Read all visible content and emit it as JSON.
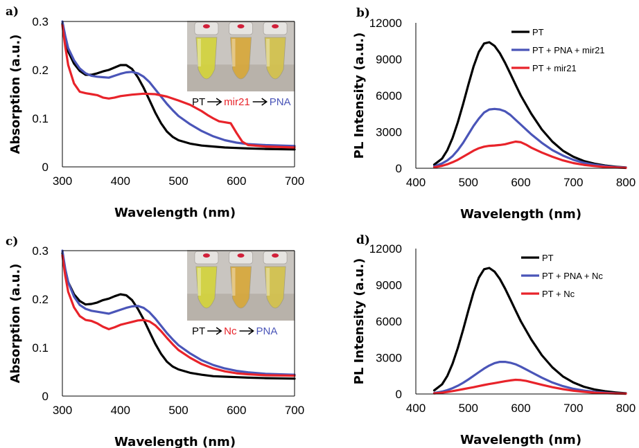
{
  "colors": {
    "PT": "#000000",
    "PNA": "#4a55b8",
    "red": "#e8232a"
  },
  "panels": [
    {
      "letter": "a)",
      "photo_label": {
        "PT": "PT",
        "target": "mir21",
        "PNA": "PNA"
      },
      "chart_data": {
        "type": "line",
        "xlabel": "Wavelength (nm)",
        "ylabel": "Absorption (a.u.)",
        "xlim": [
          300,
          700
        ],
        "ylim": [
          0,
          0.3
        ],
        "xticks": [
          "300",
          "400",
          "500",
          "600",
          "700"
        ],
        "yticks": [
          "0",
          "0.1",
          "0.2",
          "0.3"
        ],
        "grid": false,
        "series": [
          {
            "color_key": "PT",
            "x": [
              300,
              305,
              310,
              320,
              330,
              340,
              350,
              360,
              370,
              380,
              390,
              400,
              410,
              420,
              430,
              440,
              450,
              460,
              470,
              480,
              490,
              500,
              520,
              540,
              560,
              580,
              600,
              620,
              650,
              700
            ],
            "y": [
              0.295,
              0.262,
              0.238,
              0.213,
              0.198,
              0.19,
              0.19,
              0.193,
              0.197,
              0.2,
              0.205,
              0.21,
              0.21,
              0.202,
              0.185,
              0.163,
              0.138,
              0.112,
              0.09,
              0.073,
              0.062,
              0.055,
              0.048,
              0.044,
              0.042,
              0.04,
              0.039,
              0.038,
              0.037,
              0.036
            ]
          },
          {
            "color_key": "PNA",
            "x": [
              300,
              305,
              310,
              320,
              330,
              340,
              350,
              360,
              370,
              380,
              390,
              400,
              410,
              420,
              430,
              440,
              450,
              460,
              470,
              480,
              490,
              500,
              520,
              540,
              560,
              580,
              600,
              620,
              650,
              700
            ],
            "y": [
              0.3,
              0.27,
              0.245,
              0.22,
              0.203,
              0.193,
              0.188,
              0.186,
              0.185,
              0.184,
              0.188,
              0.192,
              0.195,
              0.196,
              0.193,
              0.186,
              0.175,
              0.16,
              0.145,
              0.13,
              0.117,
              0.105,
              0.088,
              0.074,
              0.063,
              0.055,
              0.05,
              0.047,
              0.045,
              0.043
            ]
          },
          {
            "color_key": "red",
            "x": [
              300,
              305,
              310,
              320,
              330,
              340,
              350,
              360,
              370,
              380,
              390,
              400,
              420,
              440,
              460,
              480,
              500,
              520,
              540,
              550,
              560,
              570,
              580,
              590,
              600,
              610,
              620,
              650,
              700
            ],
            "y": [
              0.292,
              0.248,
              0.21,
              0.172,
              0.155,
              0.152,
              0.15,
              0.148,
              0.143,
              0.141,
              0.143,
              0.146,
              0.149,
              0.151,
              0.15,
              0.145,
              0.137,
              0.128,
              0.115,
              0.107,
              0.1,
              0.094,
              0.092,
              0.09,
              0.07,
              0.052,
              0.045,
              0.042,
              0.04
            ]
          }
        ]
      }
    },
    {
      "letter": "b)",
      "legend": [
        "PT",
        "PT + PNA + mir21",
        "PT + mir21"
      ],
      "chart_data": {
        "type": "line",
        "xlabel": "Wavelength (nm)",
        "ylabel": "PL Intensity (a.u.)",
        "xlim": [
          400,
          800
        ],
        "ylim": [
          0,
          12000
        ],
        "xticks": [
          "400",
          "500",
          "600",
          "700",
          "800"
        ],
        "yticks": [
          "0",
          "3000",
          "6000",
          "9000",
          "12000"
        ],
        "grid": false,
        "legend_position": "top-right",
        "series": [
          {
            "name": "PT",
            "color_key": "PT",
            "x": [
              435,
              450,
              460,
              470,
              480,
              490,
              500,
              510,
              520,
              530,
              540,
              550,
              560,
              570,
              580,
              590,
              600,
              620,
              640,
              660,
              680,
              700,
              720,
              740,
              760,
              780,
              800
            ],
            "y": [
              300,
              800,
              1500,
              2500,
              3800,
              5300,
              6900,
              8400,
              9600,
              10300,
              10400,
              10100,
              9500,
              8700,
              7800,
              6900,
              6000,
              4500,
              3200,
              2200,
              1450,
              950,
              600,
              380,
              230,
              130,
              60
            ]
          },
          {
            "name": "PT + PNA + mir21",
            "color_key": "PNA",
            "x": [
              435,
              450,
              460,
              470,
              480,
              490,
              500,
              510,
              520,
              530,
              540,
              550,
              560,
              570,
              580,
              590,
              600,
              620,
              640,
              660,
              680,
              700,
              720,
              740,
              760,
              780,
              800
            ],
            "y": [
              150,
              400,
              650,
              1000,
              1500,
              2100,
              2800,
              3500,
              4100,
              4600,
              4850,
              4900,
              4850,
              4700,
              4400,
              4000,
              3600,
              2800,
              2100,
              1500,
              1050,
              700,
              450,
              290,
              180,
              100,
              50
            ]
          },
          {
            "name": "PT + mir21",
            "color_key": "red",
            "x": [
              435,
              450,
              460,
              470,
              480,
              490,
              500,
              510,
              520,
              530,
              540,
              550,
              560,
              570,
              580,
              590,
              600,
              610,
              620,
              640,
              660,
              680,
              700,
              720,
              740,
              760,
              780,
              800
            ],
            "y": [
              80,
              200,
              330,
              500,
              700,
              950,
              1200,
              1450,
              1650,
              1780,
              1850,
              1880,
              1920,
              1980,
              2100,
              2200,
              2150,
              1950,
              1700,
              1300,
              950,
              650,
              430,
              280,
              180,
              110,
              60,
              30
            ]
          }
        ]
      }
    },
    {
      "letter": "c)",
      "photo_label": {
        "PT": "PT",
        "target": "Nc",
        "PNA": "PNA"
      },
      "chart_data": {
        "type": "line",
        "xlabel": "Wavelength (nm)",
        "ylabel": "Absorption (a.u.)",
        "xlim": [
          300,
          700
        ],
        "ylim": [
          0,
          0.3
        ],
        "xticks": [
          "300",
          "400",
          "500",
          "600",
          "700"
        ],
        "yticks": [
          "0",
          "0.1",
          "0.2",
          "0.3"
        ],
        "grid": false,
        "series": [
          {
            "color_key": "PT",
            "x": [
              300,
              305,
              310,
              320,
              330,
              340,
              350,
              360,
              370,
              380,
              390,
              400,
              410,
              420,
              430,
              440,
              450,
              460,
              470,
              480,
              490,
              500,
              520,
              540,
              560,
              580,
              600,
              620,
              650,
              700
            ],
            "y": [
              0.295,
              0.26,
              0.235,
              0.21,
              0.196,
              0.189,
              0.19,
              0.193,
              0.198,
              0.201,
              0.206,
              0.21,
              0.208,
              0.198,
              0.18,
              0.158,
              0.133,
              0.108,
              0.087,
              0.071,
              0.061,
              0.055,
              0.048,
              0.044,
              0.041,
              0.04,
              0.039,
              0.038,
              0.037,
              0.036
            ]
          },
          {
            "color_key": "PNA",
            "x": [
              300,
              305,
              310,
              320,
              330,
              340,
              350,
              360,
              370,
              380,
              390,
              400,
              410,
              420,
              430,
              440,
              450,
              460,
              470,
              480,
              490,
              500,
              520,
              540,
              560,
              580,
              600,
              620,
              650,
              700
            ],
            "y": [
              0.3,
              0.262,
              0.235,
              0.205,
              0.188,
              0.18,
              0.176,
              0.174,
              0.172,
              0.17,
              0.174,
              0.178,
              0.182,
              0.185,
              0.186,
              0.182,
              0.173,
              0.16,
              0.145,
              0.13,
              0.117,
              0.105,
              0.088,
              0.074,
              0.064,
              0.057,
              0.052,
              0.049,
              0.046,
              0.044
            ]
          },
          {
            "color_key": "red",
            "x": [
              300,
              305,
              310,
              320,
              330,
              340,
              350,
              360,
              370,
              380,
              390,
              400,
              410,
              420,
              430,
              440,
              450,
              460,
              470,
              480,
              490,
              500,
              520,
              540,
              560,
              580,
              600,
              620,
              650,
              700
            ],
            "y": [
              0.29,
              0.248,
              0.215,
              0.183,
              0.165,
              0.157,
              0.155,
              0.15,
              0.143,
              0.138,
              0.142,
              0.147,
              0.15,
              0.153,
              0.156,
              0.157,
              0.154,
              0.146,
              0.134,
              0.12,
              0.107,
              0.095,
              0.079,
              0.066,
              0.057,
              0.051,
              0.047,
              0.045,
              0.043,
              0.042
            ]
          }
        ]
      }
    },
    {
      "letter": "d)",
      "legend": [
        "PT",
        "PT + PNA + Nc",
        "PT + Nc"
      ],
      "chart_data": {
        "type": "line",
        "xlabel": "Wavelength (nm)",
        "ylabel": "PL Intensity (a.u.)",
        "xlim": [
          400,
          800
        ],
        "ylim": [
          0,
          12000
        ],
        "xticks": [
          "400",
          "500",
          "600",
          "700",
          "800"
        ],
        "yticks": [
          "0",
          "3000",
          "6000",
          "9000",
          "12000"
        ],
        "grid": false,
        "legend_position": "top-right",
        "series": [
          {
            "name": "PT",
            "color_key": "PT",
            "x": [
              435,
              450,
              460,
              470,
              480,
              490,
              500,
              510,
              520,
              530,
              540,
              550,
              560,
              570,
              580,
              590,
              600,
              620,
              640,
              660,
              680,
              700,
              720,
              740,
              760,
              780,
              800
            ],
            "y": [
              300,
              800,
              1500,
              2500,
              3800,
              5300,
              6900,
              8400,
              9600,
              10300,
              10400,
              10100,
              9500,
              8700,
              7800,
              6900,
              6000,
              4500,
              3200,
              2200,
              1450,
              950,
              600,
              380,
              230,
              130,
              60
            ]
          },
          {
            "name": "PT + PNA + Nc",
            "color_key": "PNA",
            "x": [
              435,
              450,
              460,
              470,
              480,
              490,
              500,
              510,
              520,
              530,
              540,
              550,
              560,
              570,
              580,
              590,
              600,
              620,
              640,
              660,
              680,
              700,
              720,
              740,
              760,
              780,
              800
            ],
            "y": [
              80,
              200,
              320,
              480,
              680,
              920,
              1200,
              1500,
              1800,
              2100,
              2350,
              2550,
              2650,
              2650,
              2580,
              2450,
              2250,
              1800,
              1350,
              950,
              650,
              430,
              280,
              180,
              110,
              60,
              30
            ]
          },
          {
            "name": "PT + Nc",
            "color_key": "red",
            "x": [
              435,
              450,
              460,
              470,
              480,
              490,
              500,
              510,
              520,
              530,
              540,
              550,
              560,
              570,
              580,
              590,
              600,
              610,
              620,
              640,
              660,
              680,
              700,
              720,
              740,
              760,
              780,
              800
            ],
            "y": [
              50,
              110,
              170,
              240,
              320,
              400,
              480,
              560,
              650,
              740,
              820,
              900,
              980,
              1050,
              1120,
              1170,
              1150,
              1080,
              980,
              760,
              560,
              400,
              270,
              180,
              110,
              70,
              40,
              20
            ]
          }
        ]
      }
    }
  ]
}
